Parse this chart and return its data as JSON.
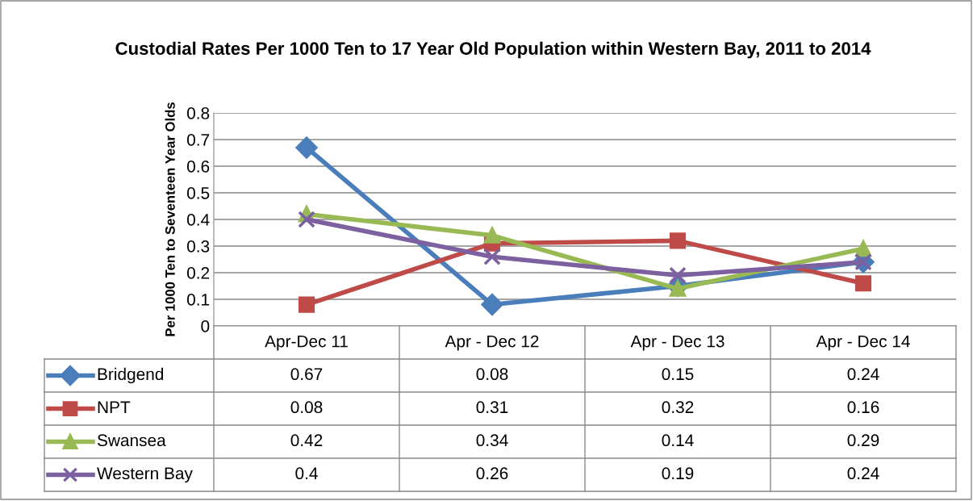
{
  "chart_data": {
    "type": "line",
    "title": "Custodial Rates Per 1000 Ten to 17 Year Old Population within Western Bay, 2011 to 2014",
    "ylabel": "Per 1000 Ten to Seventeen Year Olds",
    "categories": [
      "Apr-Dec 11",
      "Apr - Dec 12",
      "Apr - Dec 13",
      "Apr - Dec 14"
    ],
    "series": [
      {
        "name": "Bridgend",
        "color": "#4a7ebb",
        "marker": "diamond",
        "values": [
          0.67,
          0.08,
          0.15,
          0.24
        ]
      },
      {
        "name": "NPT",
        "color": "#be4b48",
        "marker": "square",
        "values": [
          0.08,
          0.31,
          0.32,
          0.16
        ]
      },
      {
        "name": "Swansea",
        "color": "#98b954",
        "marker": "triangle",
        "values": [
          0.42,
          0.34,
          0.14,
          0.29
        ]
      },
      {
        "name": "Western Bay",
        "color": "#7d60a0",
        "marker": "cross",
        "values": [
          0.4,
          0.26,
          0.19,
          0.24
        ]
      }
    ],
    "ylim": [
      0,
      0.8
    ],
    "yticks": [
      0,
      0.1,
      0.2,
      0.3,
      0.4,
      0.5,
      0.6,
      0.7,
      0.8
    ],
    "grid": "y",
    "data_labels": true,
    "legend": "left",
    "line_style": "solid"
  }
}
